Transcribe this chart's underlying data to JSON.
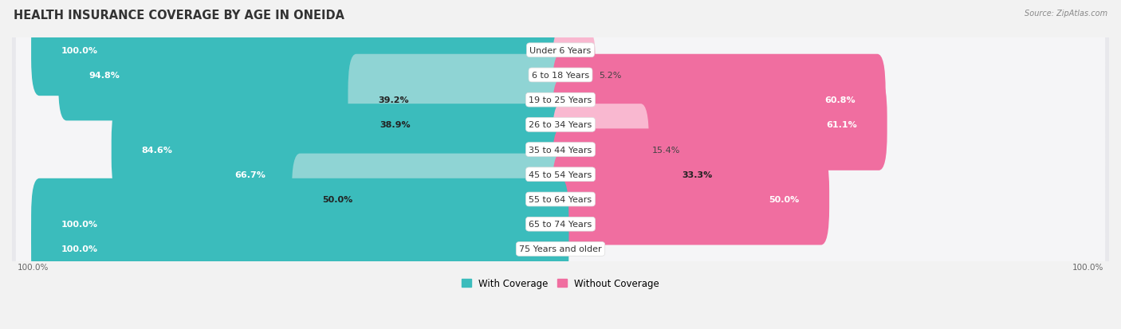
{
  "title": "HEALTH INSURANCE COVERAGE BY AGE IN ONEIDA",
  "source": "Source: ZipAtlas.com",
  "categories": [
    "Under 6 Years",
    "6 to 18 Years",
    "19 to 25 Years",
    "26 to 34 Years",
    "35 to 44 Years",
    "45 to 54 Years",
    "55 to 64 Years",
    "65 to 74 Years",
    "75 Years and older"
  ],
  "with_coverage": [
    100.0,
    94.8,
    39.2,
    38.9,
    84.6,
    66.7,
    50.0,
    100.0,
    100.0
  ],
  "without_coverage": [
    0.0,
    5.2,
    60.8,
    61.1,
    15.4,
    33.3,
    50.0,
    0.0,
    0.0
  ],
  "color_with_dark": "#3BBCBC",
  "color_with_light": "#8FD4D4",
  "color_without_dark": "#F06EA0",
  "color_without_light": "#F9B8D0",
  "color_row_bg": "#E8E8EC",
  "color_row_inner": "#F5F5F7",
  "title_fontsize": 10.5,
  "label_fontsize": 8.0,
  "cat_fontsize": 8.0,
  "tick_fontsize": 7.5,
  "legend_fontsize": 8.5
}
